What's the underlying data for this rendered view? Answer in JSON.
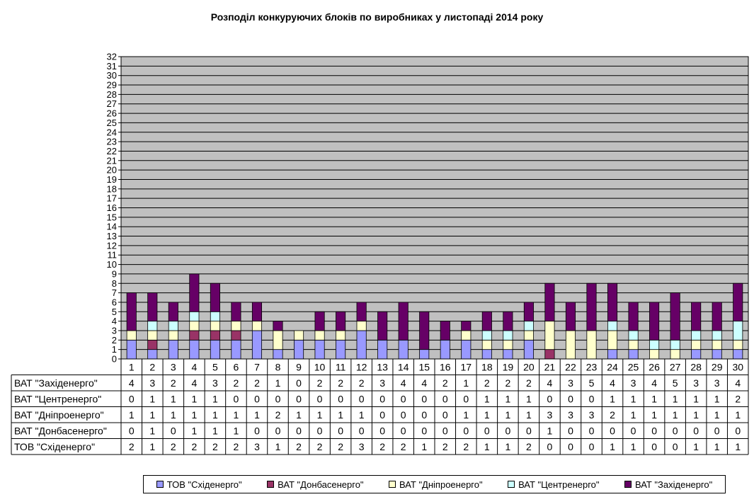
{
  "title": "Розподіл конкуруючих блоків по виробниках у листопаді 2014 року",
  "colors": {
    "plot_bg": "#c0c0c0",
    "schid": "#9999ff",
    "donbas": "#993366",
    "dnipro": "#ffffcc",
    "centr": "#ccffff",
    "zakh": "#660066"
  },
  "chart_data": {
    "type": "bar",
    "stacked": true,
    "categories": [
      "1",
      "2",
      "3",
      "4",
      "5",
      "6",
      "7",
      "8",
      "9",
      "10",
      "11",
      "12",
      "13",
      "14",
      "15",
      "16",
      "17",
      "18",
      "19",
      "20",
      "21",
      "22",
      "23",
      "24",
      "25",
      "26",
      "27",
      "28",
      "29",
      "30"
    ],
    "ylim": [
      0,
      32
    ],
    "yticks": [
      "0",
      "1",
      "2",
      "3",
      "4",
      "5",
      "6",
      "7",
      "8",
      "9",
      "10",
      "11",
      "12",
      "13",
      "14",
      "15",
      "16",
      "17",
      "18",
      "19",
      "20",
      "21",
      "22",
      "23",
      "24",
      "25",
      "26",
      "27",
      "28",
      "29",
      "30",
      "31",
      "32"
    ],
    "grid": true,
    "legend_position": "bottom",
    "series": [
      {
        "name": "ТОВ \"Східенерго\"",
        "key": "schid",
        "values": [
          2,
          1,
          2,
          2,
          2,
          2,
          3,
          1,
          2,
          2,
          2,
          3,
          2,
          2,
          1,
          2,
          2,
          1,
          1,
          2,
          0,
          0,
          0,
          1,
          1,
          0,
          0,
          1,
          1,
          1
        ]
      },
      {
        "name": "ВАТ \"Донбасенерго\"",
        "key": "donbas",
        "values": [
          0,
          1,
          0,
          1,
          1,
          1,
          0,
          0,
          0,
          0,
          0,
          0,
          0,
          0,
          0,
          0,
          0,
          0,
          0,
          0,
          1,
          0,
          0,
          0,
          0,
          0,
          0,
          0,
          0,
          0
        ]
      },
      {
        "name": "ВАТ \"Дніпроенерго\"",
        "key": "dnipro",
        "values": [
          1,
          1,
          1,
          1,
          1,
          1,
          1,
          2,
          1,
          1,
          1,
          1,
          0,
          0,
          0,
          0,
          1,
          1,
          1,
          1,
          3,
          3,
          3,
          2,
          1,
          1,
          1,
          1,
          1,
          1
        ]
      },
      {
        "name": "ВАТ \"Центренерго\"",
        "key": "centr",
        "values": [
          0,
          1,
          1,
          1,
          1,
          0,
          0,
          0,
          0,
          0,
          0,
          0,
          0,
          0,
          0,
          0,
          0,
          1,
          1,
          1,
          0,
          0,
          0,
          1,
          1,
          1,
          1,
          1,
          1,
          2
        ]
      },
      {
        "name": "ВАТ \"Західенерго\"",
        "key": "zakh",
        "values": [
          4,
          3,
          2,
          4,
          3,
          2,
          2,
          1,
          0,
          2,
          2,
          2,
          3,
          4,
          4,
          2,
          1,
          2,
          2,
          2,
          4,
          3,
          5,
          4,
          3,
          4,
          5,
          3,
          3,
          4
        ]
      }
    ],
    "table_row_order": [
      "zakh",
      "centr",
      "dnipro",
      "donbas",
      "schid"
    ]
  }
}
